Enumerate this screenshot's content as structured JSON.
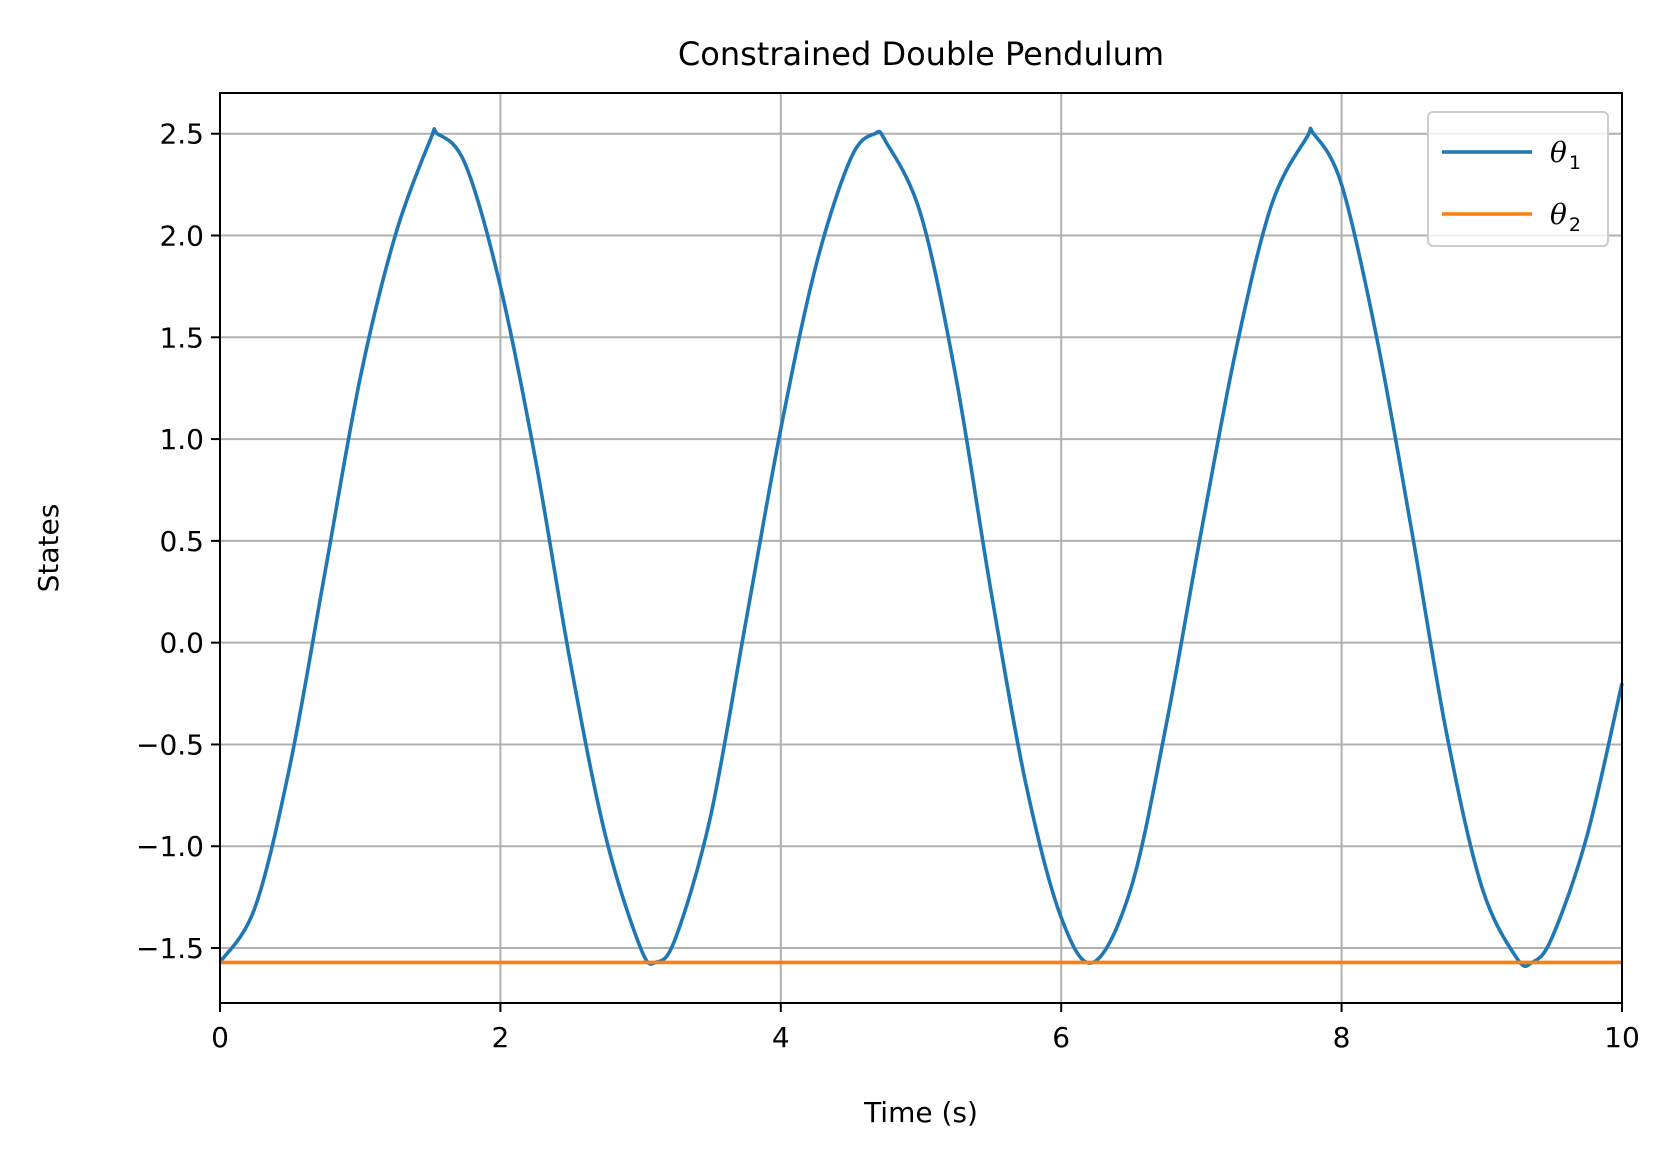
{
  "chart_data": {
    "type": "line",
    "title": "Constrained Double Pendulum",
    "xlabel": "Time (s)",
    "ylabel": "States",
    "xlim": [
      0,
      10
    ],
    "ylim": [
      -1.77,
      2.7
    ],
    "xticks": [
      0,
      2,
      4,
      6,
      8,
      10
    ],
    "xtick_labels": [
      "0",
      "2",
      "4",
      "6",
      "8",
      "10"
    ],
    "yticks": [
      -1.5,
      -1.0,
      -0.5,
      0.0,
      0.5,
      1.0,
      1.5,
      2.0,
      2.5
    ],
    "ytick_labels": [
      "−1.5",
      "−1.0",
      "−0.5",
      "0.0",
      "0.5",
      "1.0",
      "1.5",
      "2.0",
      "2.5"
    ],
    "grid": true,
    "legend_position": "upper right",
    "series": [
      {
        "name": "θ₁",
        "name_base": "θ",
        "name_sub": "1",
        "color": "#1f77b4",
        "x": [
          0,
          0.25,
          0.5,
          0.75,
          1.0,
          1.25,
          1.5,
          1.55,
          1.75,
          2.0,
          2.25,
          2.5,
          2.75,
          3.0,
          3.11,
          3.25,
          3.5,
          3.75,
          4.0,
          4.25,
          4.5,
          4.67,
          4.75,
          5.0,
          5.25,
          5.5,
          5.75,
          6.0,
          6.23,
          6.5,
          6.75,
          7.0,
          7.25,
          7.5,
          7.75,
          7.8,
          8.0,
          8.25,
          8.5,
          8.75,
          9.0,
          9.25,
          9.36,
          9.5,
          9.75,
          10.0
        ],
        "y": [
          -1.57,
          -1.3,
          -0.6,
          0.35,
          1.3,
          2.0,
          2.47,
          2.5,
          2.35,
          1.75,
          0.9,
          -0.1,
          -0.95,
          -1.5,
          -1.57,
          -1.45,
          -0.85,
          0.1,
          1.05,
          1.85,
          2.38,
          2.5,
          2.46,
          2.1,
          1.3,
          0.25,
          -0.7,
          -1.35,
          -1.57,
          -1.2,
          -0.4,
          0.55,
          1.45,
          2.15,
          2.48,
          2.5,
          2.25,
          1.5,
          0.55,
          -0.45,
          -1.2,
          -1.55,
          -1.57,
          -1.45,
          -0.95,
          -0.2
        ]
      },
      {
        "name": "θ₂",
        "name_base": "θ",
        "name_sub": "2",
        "color": "#ff7f0e",
        "x": [
          0,
          10
        ],
        "y": [
          -1.5708,
          -1.5708
        ]
      }
    ]
  }
}
